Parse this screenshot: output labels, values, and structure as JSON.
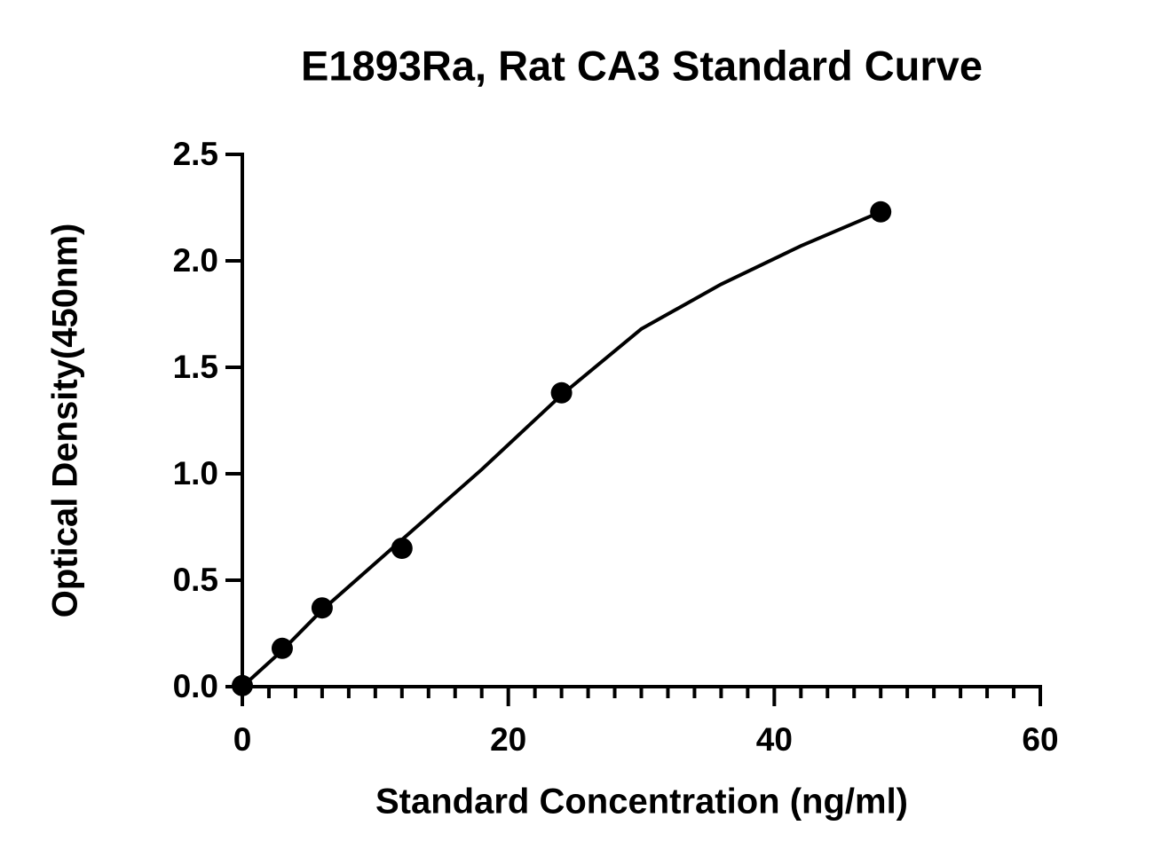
{
  "chart_data": {
    "type": "scatter",
    "title": "E1893Ra, Rat CA3 Standard Curve",
    "x_label": "Standard Concentration (ng/ml)",
    "y_label": "Optical Density(450nm)",
    "series": [
      {
        "mode": "markers",
        "color": "#000000",
        "x": [
          0,
          3,
          6,
          12,
          24,
          48
        ],
        "values": [
          0.005,
          0.18,
          0.37,
          0.65,
          1.38,
          2.23
        ]
      },
      {
        "mode": "line",
        "color": "#000000",
        "x": [
          0,
          3,
          6,
          12,
          18,
          24,
          30,
          36,
          42,
          48
        ],
        "values": [
          0,
          0.17,
          0.36,
          0.69,
          1.02,
          1.37,
          1.68,
          1.89,
          2.07,
          2.23
        ]
      }
    ],
    "xlim": [
      0,
      60
    ],
    "ylim": [
      0,
      2.5
    ],
    "xticks": [
      0,
      20,
      40,
      60
    ],
    "x_minor_ticks": [
      2,
      4,
      6,
      8,
      10,
      12,
      14,
      16,
      18,
      22,
      24,
      26,
      28,
      30,
      32,
      34,
      36,
      38,
      42,
      44,
      46,
      48,
      50,
      52,
      54,
      56,
      58
    ],
    "yticks": [
      {
        "value": 0,
        "label": "0.0"
      },
      {
        "value": 0.5,
        "label": "0.5"
      },
      {
        "value": 1,
        "label": "1.0"
      },
      {
        "value": 1.5,
        "label": "1.5"
      },
      {
        "value": 2,
        "label": "2.0"
      },
      {
        "value": 2.5,
        "label": "2.5"
      }
    ],
    "grid": false
  }
}
